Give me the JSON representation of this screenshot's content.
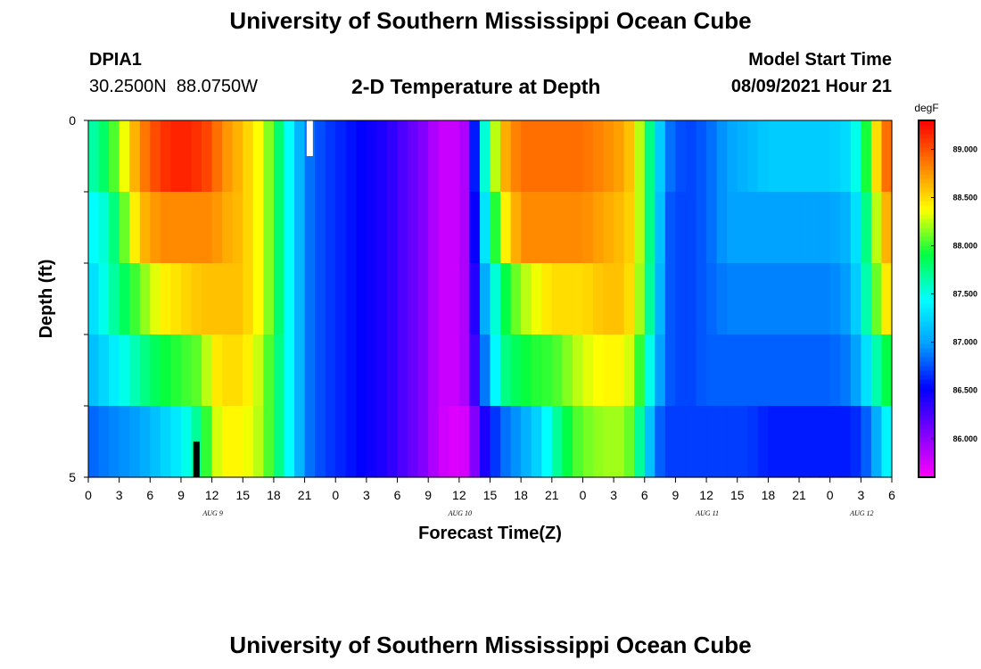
{
  "header": {
    "title": "University of Southern Mississippi Ocean Cube",
    "footer_title": "University of Southern Mississippi Ocean Cube",
    "station_id": "DPIA1",
    "coordinates": "30.2500N  88.0750W",
    "subtitle": "2-D Temperature at Depth",
    "model_label": "Model Start Time",
    "model_time": "08/09/2021 Hour 21"
  },
  "chart_data": {
    "type": "heatmap",
    "title": "2-D Temperature at Depth",
    "xlabel": "Forecast Time(Z)",
    "ylabel": "Depth (ft)",
    "ylim": [
      0,
      5
    ],
    "y_tick_labels": [
      "0",
      "5"
    ],
    "x_tick_labels": [
      "0",
      "3",
      "6",
      "9",
      "12",
      "15",
      "18",
      "21",
      "0",
      "3",
      "6",
      "9",
      "12",
      "15",
      "18",
      "21",
      "0",
      "3",
      "6",
      "9",
      "12",
      "15",
      "18",
      "21",
      "0",
      "3",
      "6"
    ],
    "x_day_labels": [
      {
        "label": "AUG 9",
        "tick_index": 4
      },
      {
        "label": "AUG 10",
        "tick_index": 12
      },
      {
        "label": "AUG 11",
        "tick_index": 20
      },
      {
        "label": "AUG 12",
        "tick_index": 25
      }
    ],
    "hours_start": 0,
    "hours_end": 78,
    "depth_levels": [
      0.5,
      1.5,
      2.5,
      3.5,
      4.5
    ],
    "colorbar": {
      "unit": "degF",
      "range": [
        85.6,
        89.3
      ],
      "tick_labels": [
        "89.000",
        "88.500",
        "88.000",
        "87.500",
        "87.000",
        "86.500",
        "86.000"
      ],
      "tick_values": [
        89.0,
        88.5,
        88.0,
        87.5,
        87.0,
        86.5,
        86.0
      ],
      "colors": [
        "#ff00ff",
        "#8000ff",
        "#0000ff",
        "#00a0ff",
        "#00ffff",
        "#00ff40",
        "#ffff00",
        "#ff8000",
        "#ff0000"
      ]
    },
    "keyframes": {
      "hours": [
        0,
        2,
        5,
        7,
        9,
        11,
        12,
        13,
        15,
        17,
        18,
        19,
        20,
        21,
        23,
        25,
        27,
        29,
        31,
        33,
        34,
        36,
        37,
        38,
        40,
        42,
        44,
        45,
        46,
        47,
        48,
        50,
        52,
        53,
        54,
        55,
        56,
        58,
        60,
        62,
        64,
        66,
        68,
        70,
        72,
        74,
        75,
        76,
        77,
        78
      ],
      "series": [
        {
          "depth": 0.5,
          "values": [
            87.6,
            87.9,
            88.8,
            89.1,
            89.2,
            89.1,
            89.0,
            88.8,
            88.6,
            88.3,
            88.0,
            87.6,
            87.3,
            86.9,
            86.7,
            86.6,
            86.5,
            86.4,
            86.2,
            86.0,
            85.8,
            85.8,
            86.0,
            87.2,
            88.6,
            88.9,
            88.9,
            88.9,
            88.9,
            88.9,
            88.9,
            88.8,
            88.7,
            88.5,
            88.0,
            87.5,
            86.9,
            86.7,
            86.8,
            87.0,
            87.1,
            87.2,
            87.2,
            87.2,
            87.2,
            87.3,
            87.7,
            88.2,
            88.8,
            89.0
          ]
        },
        {
          "depth": 1.5,
          "values": [
            87.4,
            87.6,
            88.6,
            88.8,
            88.8,
            88.8,
            88.8,
            88.7,
            88.6,
            88.3,
            88.0,
            87.6,
            87.3,
            86.9,
            86.7,
            86.6,
            86.5,
            86.4,
            86.2,
            86.0,
            85.8,
            85.8,
            86.0,
            87.0,
            88.3,
            88.8,
            88.8,
            88.8,
            88.8,
            88.8,
            88.8,
            88.7,
            88.6,
            88.5,
            88.0,
            87.5,
            86.8,
            86.7,
            86.8,
            87.0,
            87.0,
            87.0,
            87.0,
            87.0,
            87.0,
            87.1,
            87.5,
            88.0,
            88.5,
            88.8
          ]
        },
        {
          "depth": 2.5,
          "values": [
            87.2,
            87.6,
            88.1,
            88.4,
            88.5,
            88.6,
            88.6,
            88.6,
            88.6,
            88.3,
            88.0,
            87.6,
            87.3,
            86.9,
            86.7,
            86.6,
            86.5,
            86.4,
            86.2,
            86.0,
            85.8,
            85.8,
            86.0,
            86.8,
            87.8,
            88.2,
            88.4,
            88.5,
            88.5,
            88.5,
            88.5,
            88.6,
            88.6,
            88.4,
            88.0,
            87.4,
            86.8,
            86.7,
            86.8,
            86.9,
            86.9,
            86.9,
            86.9,
            86.9,
            86.9,
            87.0,
            87.4,
            87.9,
            88.3,
            88.6
          ]
        },
        {
          "depth": 3.5,
          "values": [
            87.1,
            87.3,
            87.7,
            87.9,
            88.0,
            88.1,
            88.4,
            88.5,
            88.5,
            88.2,
            87.9,
            87.6,
            87.3,
            86.9,
            86.7,
            86.6,
            86.5,
            86.4,
            86.2,
            86.0,
            85.8,
            85.8,
            86.0,
            86.6,
            87.7,
            87.9,
            88.0,
            88.0,
            88.1,
            88.2,
            88.3,
            88.4,
            88.4,
            88.2,
            87.8,
            87.2,
            86.8,
            86.7,
            86.8,
            86.8,
            86.8,
            86.8,
            86.8,
            86.8,
            86.8,
            86.9,
            87.1,
            87.5,
            87.8,
            88.0
          ]
        },
        {
          "depth": 4.5,
          "values": [
            86.8,
            86.9,
            87.0,
            87.2,
            87.4,
            87.8,
            88.2,
            88.4,
            88.4,
            88.2,
            87.9,
            87.6,
            87.3,
            86.9,
            86.7,
            86.6,
            86.5,
            86.4,
            86.2,
            86.0,
            85.8,
            85.7,
            85.8,
            86.3,
            86.8,
            87.0,
            87.3,
            87.6,
            87.8,
            88.0,
            88.1,
            88.2,
            88.2,
            88.0,
            87.4,
            86.9,
            86.7,
            86.7,
            86.7,
            86.7,
            86.7,
            86.6,
            86.6,
            86.6,
            86.6,
            86.6,
            86.7,
            86.9,
            87.2,
            87.6
          ]
        }
      ]
    },
    "markers": [
      {
        "name": "white-marker",
        "hour": 21.5,
        "depth_top": 0,
        "depth_bottom": 0.5,
        "color": "#ffffff"
      },
      {
        "name": "black-marker",
        "hour": 10.5,
        "depth_top": 4.5,
        "depth_bottom": 5,
        "color": "#000000"
      }
    ]
  }
}
